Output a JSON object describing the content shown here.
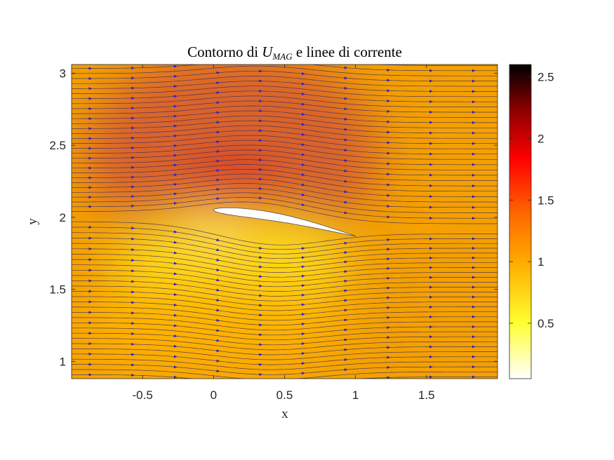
{
  "chart_data": {
    "type": "heatmap",
    "title": {
      "prefix": "Contorno di ",
      "symbol": "U",
      "subscript": "MAG",
      "suffix": " e linee di corrente"
    },
    "xlabel": "x",
    "ylabel": "y",
    "xlim": [
      -1,
      2
    ],
    "ylim": [
      0.88,
      3.06
    ],
    "xticks": [
      -0.5,
      0,
      0.5,
      1,
      1.5
    ],
    "xtick_labels": [
      "-0.5",
      "0",
      "0.5",
      "1",
      "1.5"
    ],
    "yticks": [
      1,
      1.5,
      2,
      2.5,
      3
    ],
    "ytick_labels": [
      "1",
      "1.5",
      "2",
      "2.5",
      "3"
    ],
    "colorbar": {
      "colormap": "hot (reversed)",
      "range": [
        0.05,
        2.6
      ],
      "ticks": [
        0.5,
        1,
        1.5,
        2,
        2.5
      ],
      "tick_labels": [
        "0.5",
        "1",
        "1.5",
        "2",
        "2.5"
      ]
    },
    "airfoil": {
      "leading_edge": [
        0,
        2.05
      ],
      "trailing_edge": [
        1,
        1.87
      ],
      "fill": "#ffffff"
    },
    "freestream_value": 1.0,
    "streamline_color": "#3a2a66",
    "arrow_color": "#2a1fd0",
    "grid": false
  }
}
